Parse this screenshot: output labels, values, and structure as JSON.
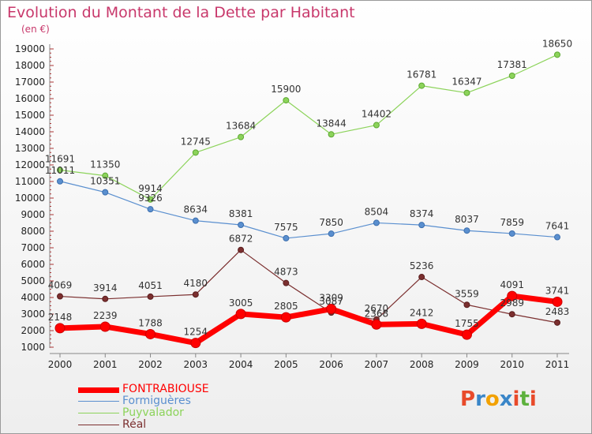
{
  "title": "Evolution du Montant de la Dette par Habitant",
  "subtitle": "(en €)",
  "logo": {
    "text": "Proxiti",
    "letters": [
      "P",
      "r",
      "o",
      "x",
      "i",
      "t",
      "i"
    ],
    "colors": [
      "#e84a2a",
      "#3a86c8",
      "#f2a100",
      "#3a86c8",
      "#e84a2a",
      "#5db13d",
      "#e84a2a"
    ]
  },
  "chart_data": {
    "type": "line",
    "title": "Evolution du Montant de la Dette par Habitant",
    "ylabel": "(en €)",
    "xlabel": "",
    "x": [
      "2000",
      "2001",
      "2002",
      "2003",
      "2004",
      "2005",
      "2006",
      "2007",
      "2008",
      "2009",
      "2010",
      "2011"
    ],
    "ylim": [
      1000,
      19000
    ],
    "yticks": [
      1000,
      2000,
      3000,
      4000,
      5000,
      6000,
      7000,
      8000,
      9000,
      10000,
      11000,
      12000,
      13000,
      14000,
      15000,
      16000,
      17000,
      18000,
      19000
    ],
    "grid": false,
    "legend": "bottom-left",
    "series": [
      {
        "name": "FONTRABIOUSE",
        "color": "#ff0000",
        "values": [
          2148,
          2239,
          1788,
          1254,
          3005,
          2805,
          3309,
          2368,
          2412,
          1755,
          4091,
          3741
        ]
      },
      {
        "name": "Formiguères",
        "color": "#5a8fcf",
        "values": [
          11011,
          10351,
          9326,
          8634,
          8381,
          7575,
          7850,
          8504,
          8374,
          8037,
          7859,
          7641
        ]
      },
      {
        "name": "Puyvalador",
        "color": "#8cd35a",
        "values": [
          11691,
          11350,
          9914,
          12745,
          13684,
          15900,
          13844,
          14402,
          16781,
          16347,
          17381,
          18650
        ]
      },
      {
        "name": "Réal",
        "color": "#7b2f2f",
        "values": [
          4069,
          3914,
          4051,
          4180,
          6872,
          4873,
          3087,
          2670,
          5236,
          3559,
          2989,
          2483
        ]
      }
    ]
  }
}
